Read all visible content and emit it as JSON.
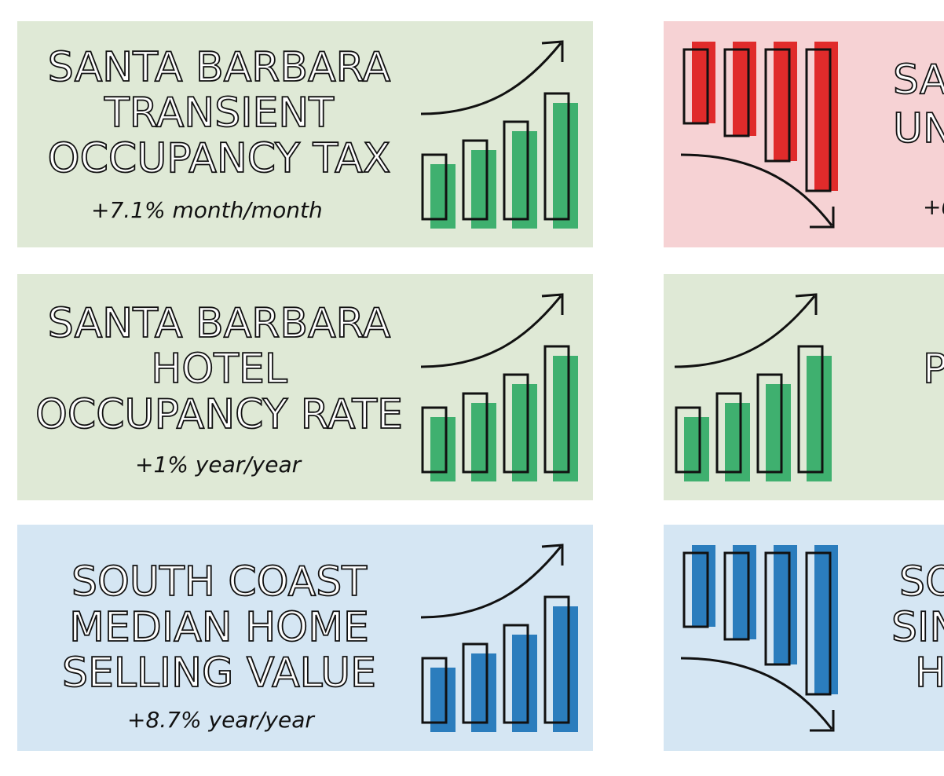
{
  "colors": {
    "green_bg": "#dfe9d6",
    "red_bg": "#f6d2d4",
    "blue_bg": "#d5e6f3",
    "green_bar": "#3fb06f",
    "red_bar": "#e02b2b",
    "blue_bar": "#2b7dbd",
    "outline": "#111111"
  },
  "cards": [
    {
      "title_lines": [
        "SANTA BARBARA",
        "TRANSIENT",
        "OCCUPANCY TAX"
      ],
      "stat": "+7.1% month/month",
      "trend": "up",
      "icon": "trend-up-bar-chart-icon"
    },
    {
      "title_lines": [
        "SA",
        "",
        "UN"
      ],
      "stat": "+0",
      "trend": "down",
      "icon": "trend-down-bar-chart-icon"
    },
    {
      "title_lines": [
        "SANTA BARBARA",
        "HOTEL",
        "OCCUPANCY RATE"
      ],
      "stat": "+1% year/year",
      "trend": "up",
      "icon": "trend-up-bar-chart-icon"
    },
    {
      "title_lines": [
        "P"
      ],
      "stat": "",
      "trend": "up",
      "icon": "trend-up-bar-chart-icon"
    },
    {
      "title_lines": [
        "SOUTH COAST",
        "MEDIAN HOME",
        "SELLING VALUE"
      ],
      "stat": "+8.7% year/year",
      "trend": "up",
      "icon": "trend-up-bar-chart-icon"
    },
    {
      "title_lines": [
        "SO",
        "SIN",
        "H"
      ],
      "stat": "",
      "trend": "down",
      "icon": "trend-down-bar-chart-icon"
    }
  ]
}
